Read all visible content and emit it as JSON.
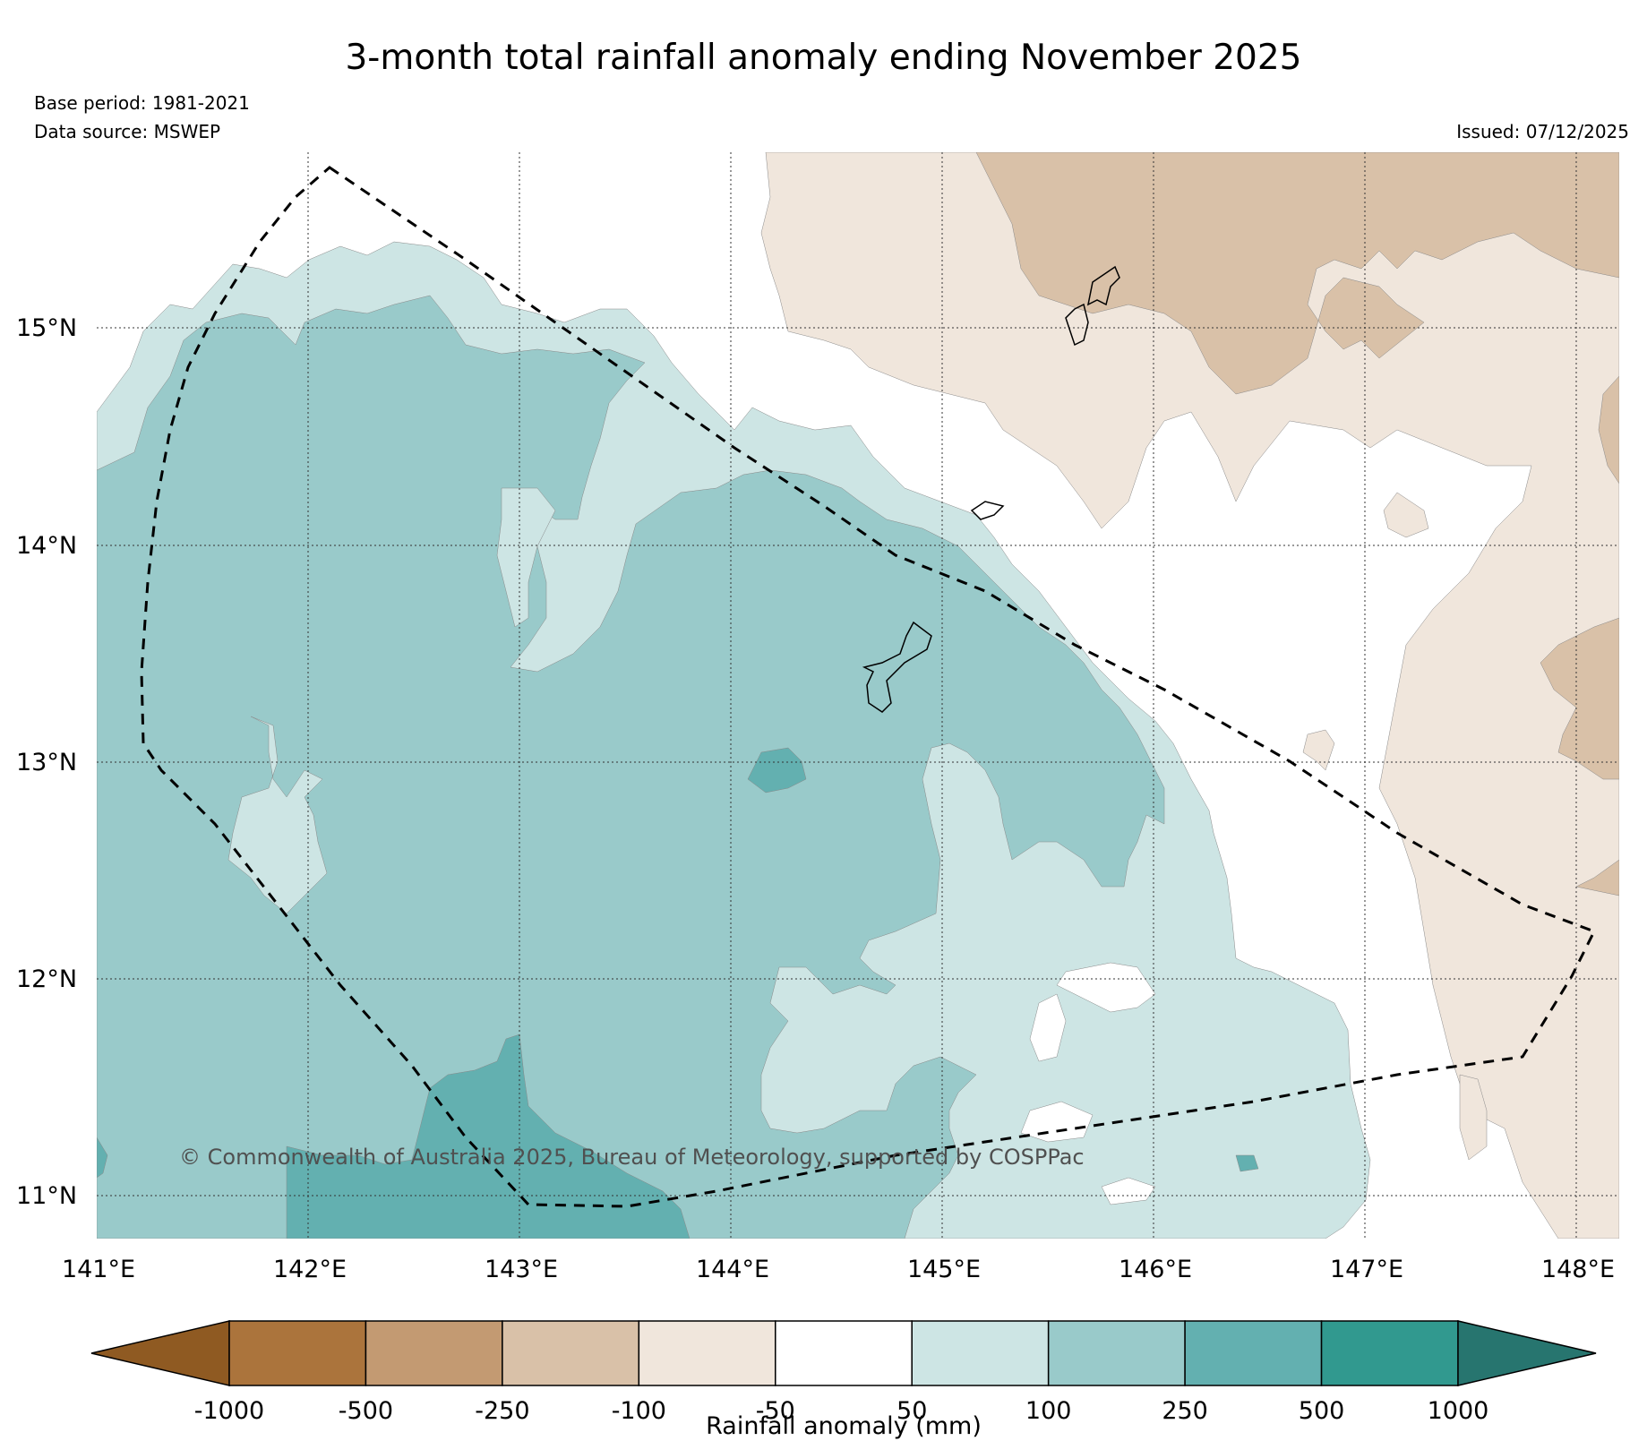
{
  "title": "3-month total rainfall anomaly ending November 2025",
  "base_period": "Base period: 1981-2021",
  "data_source": "Data source: MSWEP",
  "issued": "Issued: 07/12/2025",
  "copyright": "© Commonwealth of Australia 2025, Bureau of Meteorology, supported by COSPPac",
  "lat_labels": [
    "15°N",
    "14°N",
    "13°N",
    "12°N",
    "11°N"
  ],
  "lon_labels": [
    "141°E",
    "142°E",
    "143°E",
    "144°E",
    "145°E",
    "146°E",
    "147°E",
    "148°E"
  ],
  "colorbar": {
    "title": "Rainfall anomaly (mm)",
    "ticks": [
      "-1000",
      "-500",
      "-250",
      "-100",
      "-50",
      "50",
      "100",
      "250",
      "500",
      "1000"
    ],
    "colors": {
      "under": "#8f5a22",
      "bins": [
        "#ab743c",
        "#c39a72",
        "#d9c1a8",
        "#f0e6dc",
        "#ffffff",
        "#cde5e4",
        "#99caca",
        "#63b0b0",
        "#31998f"
      ],
      "over": "#27756f"
    }
  },
  "colors": {
    "wet_light": "#cde5e4",
    "wet_mid": "#99caca",
    "wet_strong": "#63b0b0",
    "dry_light": "#f0e6dc",
    "dry_mid": "#d9c1a8"
  }
}
